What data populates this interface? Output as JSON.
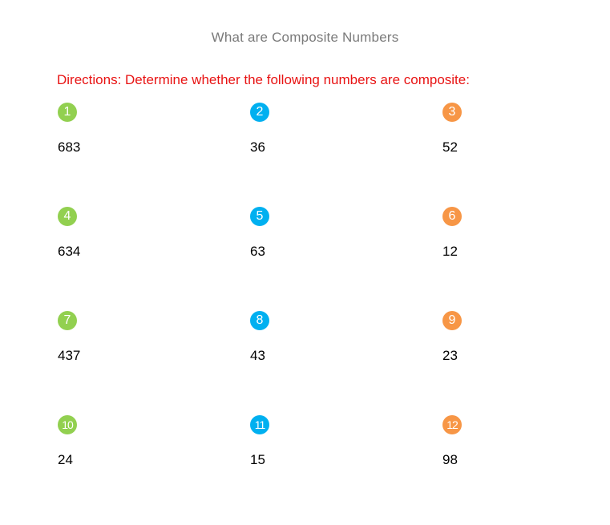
{
  "title": "What are Composite Numbers",
  "directions": "Directions: Determine whether the following numbers are composite:",
  "colors": {
    "title_text": "#7a7a7a",
    "directions_text": "#e81313",
    "badge_col1": "#92d050",
    "badge_col2": "#00b0f0",
    "badge_col3": "#f79646"
  },
  "problems": [
    {
      "badge": "1",
      "number": "683"
    },
    {
      "badge": "2",
      "number": "36"
    },
    {
      "badge": "3",
      "number": "52"
    },
    {
      "badge": "4",
      "number": "634"
    },
    {
      "badge": "5",
      "number": "63"
    },
    {
      "badge": "6",
      "number": "12"
    },
    {
      "badge": "7",
      "number": "437"
    },
    {
      "badge": "8",
      "number": "43"
    },
    {
      "badge": "9",
      "number": "23"
    },
    {
      "badge": "10",
      "number": "24"
    },
    {
      "badge": "11",
      "number": "15"
    },
    {
      "badge": "12",
      "number": "98"
    }
  ]
}
